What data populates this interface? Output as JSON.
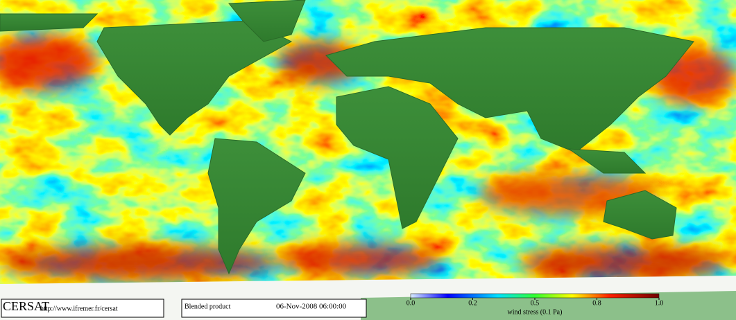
{
  "logo": "CERSAT",
  "url": "http://www.ifremer.fr/cersat",
  "product": "Blended product",
  "date": "06-Nov-2008 06:00:00",
  "colorbar": {
    "label": "wind stress (0.1 Pa)",
    "lim": [
      0,
      1
    ],
    "ticks": [
      {
        "value": 0,
        "label": "0.0"
      },
      0.2,
      0.5,
      0.8,
      {
        "value": 1,
        "label": "1.0"
      }
    ]
  }
}
